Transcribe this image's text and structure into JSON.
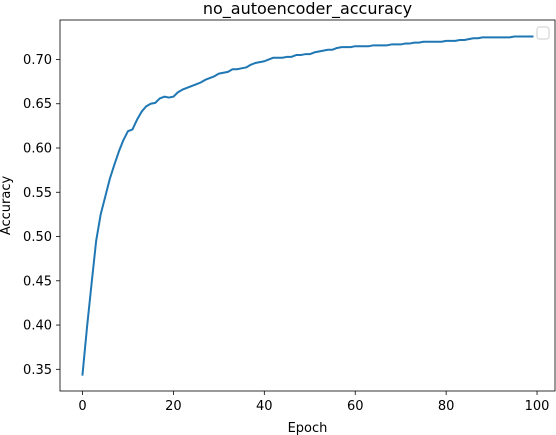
{
  "chart_data": {
    "type": "line",
    "title": "no_autoencoder_accuracy",
    "xlabel": "Epoch",
    "ylabel": "Accuracy",
    "xlim": [
      -4.95,
      103.95
    ],
    "ylim": [
      0.3255,
      0.7446
    ],
    "xticks": [
      0,
      20,
      40,
      60,
      80,
      100
    ],
    "yticks": [
      0.35,
      0.4,
      0.45,
      0.5,
      0.55,
      0.6,
      0.65,
      0.7
    ],
    "ytick_labels": [
      "0.35",
      "0.40",
      "0.45",
      "0.50",
      "0.55",
      "0.60",
      "0.65",
      "0.70"
    ],
    "xtick_labels": [
      "0",
      "20",
      "40",
      "60",
      "80",
      "100"
    ],
    "grid": false,
    "legend": "top-right (empty)",
    "series": [
      {
        "color": "#1f77b4",
        "x": [
          0,
          1,
          2,
          3,
          4,
          5,
          6,
          7,
          8,
          9,
          10,
          11,
          12,
          13,
          14,
          15,
          16,
          17,
          18,
          19,
          20,
          21,
          22,
          23,
          24,
          25,
          26,
          27,
          28,
          29,
          30,
          31,
          32,
          33,
          34,
          35,
          36,
          37,
          38,
          39,
          40,
          41,
          42,
          43,
          44,
          45,
          46,
          47,
          48,
          49,
          50,
          51,
          52,
          53,
          54,
          55,
          56,
          57,
          58,
          59,
          60,
          61,
          62,
          63,
          64,
          65,
          66,
          67,
          68,
          69,
          70,
          71,
          72,
          73,
          74,
          75,
          76,
          77,
          78,
          79,
          80,
          81,
          82,
          83,
          84,
          85,
          86,
          87,
          88,
          89,
          90,
          91,
          92,
          93,
          94,
          95,
          96,
          97,
          98,
          99
        ],
        "y": [
          0.344,
          0.398,
          0.447,
          0.495,
          0.525,
          0.545,
          0.565,
          0.581,
          0.596,
          0.609,
          0.619,
          0.621,
          0.632,
          0.641,
          0.647,
          0.65,
          0.651,
          0.656,
          0.658,
          0.657,
          0.658,
          0.663,
          0.666,
          0.668,
          0.67,
          0.672,
          0.674,
          0.677,
          0.679,
          0.681,
          0.684,
          0.685,
          0.686,
          0.689,
          0.689,
          0.69,
          0.691,
          0.694,
          0.696,
          0.697,
          0.698,
          0.7,
          0.702,
          0.702,
          0.702,
          0.703,
          0.703,
          0.705,
          0.705,
          0.706,
          0.706,
          0.708,
          0.709,
          0.71,
          0.711,
          0.711,
          0.713,
          0.714,
          0.714,
          0.714,
          0.715,
          0.715,
          0.715,
          0.715,
          0.716,
          0.716,
          0.716,
          0.716,
          0.717,
          0.717,
          0.717,
          0.718,
          0.718,
          0.719,
          0.719,
          0.72,
          0.72,
          0.72,
          0.72,
          0.72,
          0.721,
          0.721,
          0.721,
          0.722,
          0.722,
          0.723,
          0.724,
          0.724,
          0.725,
          0.725,
          0.725,
          0.725,
          0.725,
          0.725,
          0.725,
          0.726,
          0.726,
          0.726,
          0.726,
          0.726
        ]
      }
    ]
  }
}
